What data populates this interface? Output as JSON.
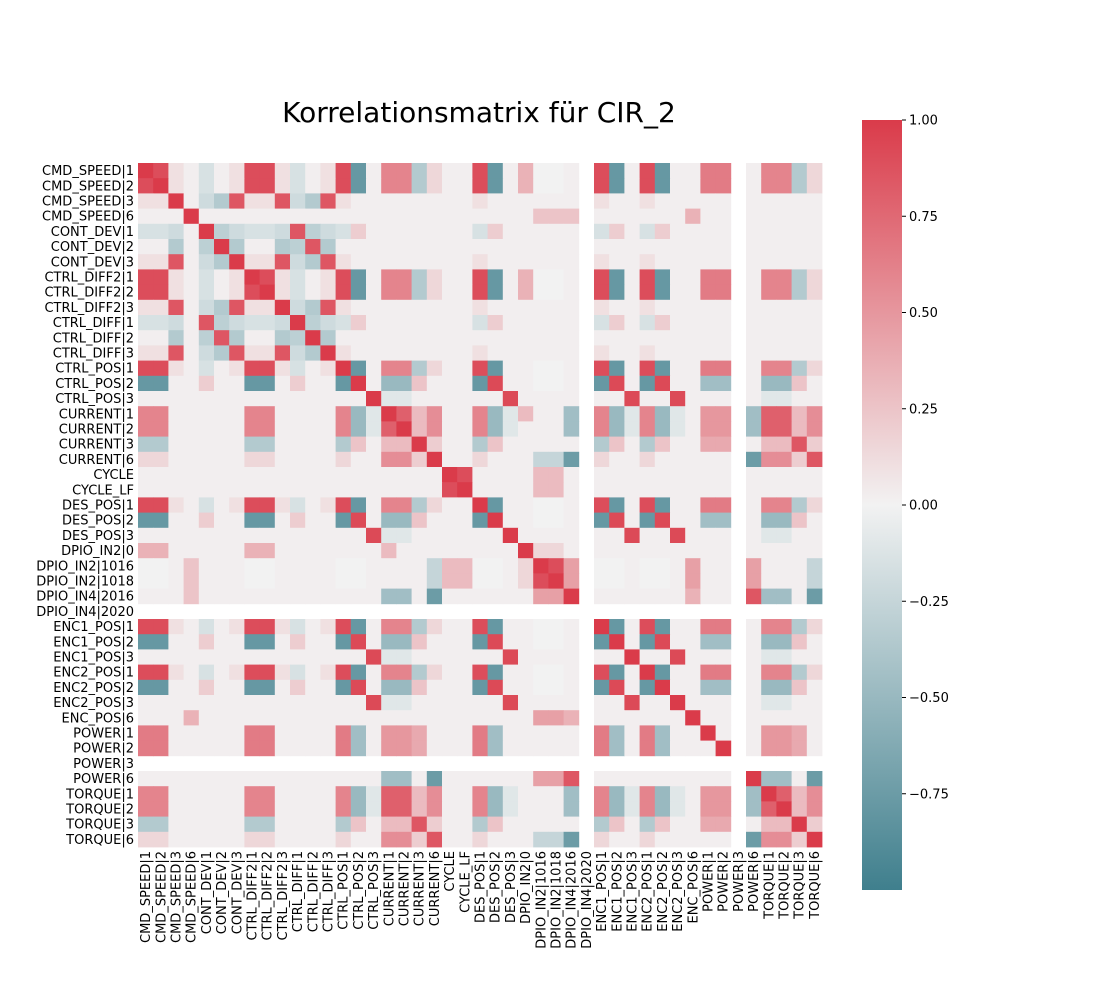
{
  "chart_data": {
    "type": "heatmap",
    "title": "Korrelationsmatrix für CIR_2",
    "xlabel": "",
    "ylabel": "",
    "colormap": {
      "low": "#3f7f8d",
      "mid": "#f2f2f2",
      "high": "#da3b4a",
      "range": [
        -1.0,
        1.0
      ]
    },
    "colorbar_ticks": [
      {
        "value": 1.0,
        "label": "1.00"
      },
      {
        "value": 0.75,
        "label": "0.75"
      },
      {
        "value": 0.5,
        "label": "0.50"
      },
      {
        "value": 0.25,
        "label": "0.25"
      },
      {
        "value": 0.0,
        "label": "0.00"
      },
      {
        "value": -0.25,
        "label": "−0.25"
      },
      {
        "value": -0.5,
        "label": "−0.50"
      },
      {
        "value": -0.75,
        "label": "−0.75"
      }
    ],
    "variables": [
      "CMD_SPEED|1",
      "CMD_SPEED|2",
      "CMD_SPEED|3",
      "CMD_SPEED|6",
      "CONT_DEV|1",
      "CONT_DEV|2",
      "CONT_DEV|3",
      "CTRL_DIFF2|1",
      "CTRL_DIFF2|2",
      "CTRL_DIFF2|3",
      "CTRL_DIFF|1",
      "CTRL_DIFF|2",
      "CTRL_DIFF|3",
      "CTRL_POS|1",
      "CTRL_POS|2",
      "CTRL_POS|3",
      "CURRENT|1",
      "CURRENT|2",
      "CURRENT|3",
      "CURRENT|6",
      "CYCLE",
      "CYCLE_LF",
      "DES_POS|1",
      "DES_POS|2",
      "DES_POS|3",
      "DPIO_IN2|0",
      "DPIO_IN2|1016",
      "DPIO_IN2|1018",
      "DPIO_IN4|2016",
      "DPIO_IN4|2020",
      "ENC1_POS|1",
      "ENC1_POS|2",
      "ENC1_POS|3",
      "ENC2_POS|1",
      "ENC2_POS|2",
      "ENC2_POS|3",
      "ENC_POS|6",
      "POWER|1",
      "POWER|2",
      "POWER|3",
      "POWER|6",
      "TORQUE|1",
      "TORQUE|2",
      "TORQUE|3",
      "TORQUE|6"
    ],
    "empty_variables": [
      "DPIO_IN4|2020",
      "POWER|3"
    ],
    "groups": {
      "A": [
        0,
        1,
        7,
        8,
        13,
        22,
        30,
        33
      ],
      "B": [
        14,
        23,
        31,
        34
      ],
      "C": [
        2,
        6,
        9,
        12
      ],
      "D": [
        4,
        10
      ],
      "E": [
        5,
        11
      ],
      "F": [
        15,
        24,
        32,
        35
      ],
      "G": [
        16,
        17,
        41,
        42
      ],
      "H": [
        18,
        43
      ],
      "I": [
        19,
        44
      ],
      "J": [
        28,
        40
      ],
      "K": [
        26,
        27
      ],
      "L": [
        20,
        21
      ],
      "M": [
        37,
        38
      ]
    },
    "group_correlations": [
      {
        "a": "A",
        "b": "A",
        "r": 0.9
      },
      {
        "a": "B",
        "b": "B",
        "r": 0.92
      },
      {
        "a": "A",
        "b": "B",
        "r": -0.78
      },
      {
        "a": "C",
        "b": "C",
        "r": 0.85
      },
      {
        "a": "D",
        "b": "D",
        "r": 0.85
      },
      {
        "a": "E",
        "b": "E",
        "r": 0.85
      },
      {
        "a": "F",
        "b": "F",
        "r": 0.92
      },
      {
        "a": "G",
        "b": "G",
        "r": 0.8
      },
      {
        "a": "H",
        "b": "H",
        "r": 0.85
      },
      {
        "a": "I",
        "b": "I",
        "r": 0.85
      },
      {
        "a": "J",
        "b": "J",
        "r": 0.85
      },
      {
        "a": "K",
        "b": "K",
        "r": 0.9
      },
      {
        "a": "L",
        "b": "L",
        "r": 0.9
      },
      {
        "a": "I",
        "b": "J",
        "r": -0.75
      },
      {
        "a": "A",
        "b": "G",
        "r": 0.6
      },
      {
        "a": "B",
        "b": "G",
        "r": -0.5
      },
      {
        "a": "A",
        "b": "H",
        "r": -0.35
      },
      {
        "a": "B",
        "b": "H",
        "r": 0.25
      },
      {
        "a": "A",
        "b": "M",
        "r": 0.65
      },
      {
        "a": "B",
        "b": "M",
        "r": -0.45
      },
      {
        "a": "A",
        "b": "C",
        "r": 0.1
      },
      {
        "a": "D",
        "b": "E",
        "r": -0.3
      },
      {
        "a": "C",
        "b": "D",
        "r": -0.2
      },
      {
        "a": "C",
        "b": "E",
        "r": -0.35
      },
      {
        "a": "D",
        "b": "B",
        "r": 0.2
      },
      {
        "a": "A",
        "b": "D",
        "r": -0.15
      },
      {
        "a": "G",
        "b": "H",
        "r": 0.3
      },
      {
        "a": "G",
        "b": "I",
        "r": 0.55
      },
      {
        "a": "G",
        "b": "J",
        "r": -0.4
      },
      {
        "a": "H",
        "b": "I",
        "r": 0.2
      },
      {
        "a": "G",
        "b": "M",
        "r": 0.5
      },
      {
        "a": "H",
        "b": "M",
        "r": 0.4
      },
      {
        "a": "A",
        "b": "I",
        "r": 0.15
      },
      {
        "a": "K",
        "b": "J",
        "r": 0.45
      },
      {
        "a": "K",
        "b": "I",
        "r": -0.25
      },
      {
        "a": "L",
        "b": "K",
        "r": 0.3
      },
      {
        "a": "F",
        "b": "G",
        "r": -0.1
      },
      {
        "a": "J",
        "b": "G",
        "r": -0.45
      },
      {
        "a": "A",
        "b": "K",
        "r": 0.0
      },
      {
        "a": "B",
        "b": "K",
        "r": 0.0
      }
    ],
    "pair_correlations": [
      {
        "i": 25,
        "j": 0,
        "r": 0.35
      },
      {
        "i": 25,
        "j": 1,
        "r": 0.35
      },
      {
        "i": 25,
        "j": 7,
        "r": 0.35
      },
      {
        "i": 25,
        "j": 8,
        "r": 0.35
      },
      {
        "i": 25,
        "j": 26,
        "r": 0.15
      },
      {
        "i": 25,
        "j": 27,
        "r": 0.15
      },
      {
        "i": 25,
        "j": 16,
        "r": 0.3
      },
      {
        "i": 36,
        "j": 26,
        "r": 0.45
      },
      {
        "i": 36,
        "j": 27,
        "r": 0.45
      },
      {
        "i": 36,
        "j": 28,
        "r": 0.35
      },
      {
        "i": 3,
        "j": 26,
        "r": 0.25
      },
      {
        "i": 3,
        "j": 27,
        "r": 0.25
      },
      {
        "i": 3,
        "j": 28,
        "r": 0.25
      },
      {
        "i": 3,
        "j": 36,
        "r": 0.35
      },
      {
        "i": 39,
        "j": 20,
        "r": 0.0
      }
    ],
    "default_r": 0.02
  }
}
